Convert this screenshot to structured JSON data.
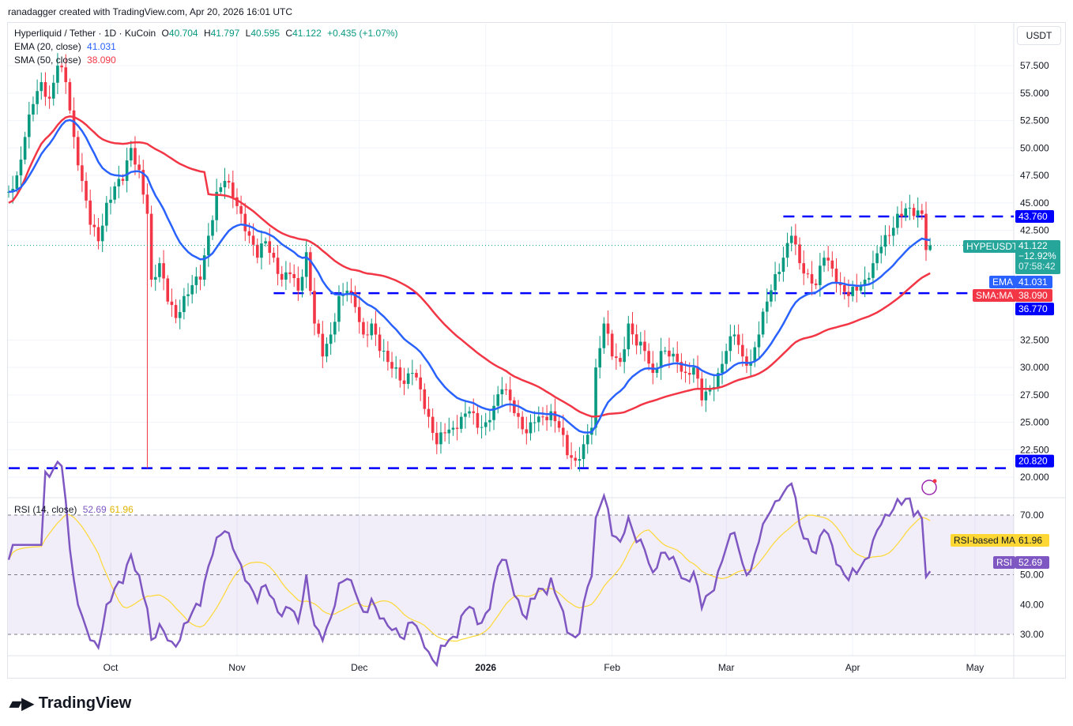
{
  "attribution": "ranadagger created with TradingView.com, Apr 20, 2026 16:01 UTC",
  "currency_button": "USDT",
  "logo_text": "TradingView",
  "legend": {
    "symbol": "Hyperliquid / Tether · 1D · KuCoin",
    "o_label": "O",
    "o": "40.704",
    "h_label": "H",
    "h": "41.797",
    "l_label": "L",
    "l": "40.595",
    "c_label": "C",
    "c": "41.122",
    "change": "+0.435 (+1.07%)",
    "ema_label": "EMA (20, close)",
    "ema_value": "41.031",
    "sma_label": "SMA (50, close)",
    "sma_value": "38.090",
    "rsi_label": "RSI (14, close)",
    "rsi_value": "52.69",
    "rsi_ma_value": "61.96"
  },
  "price_tags": {
    "symbol": "HYPEUSDT",
    "price": "41.122",
    "change_pct": "−12.92%",
    "countdown": "07:58:42",
    "ema_label": "EMA",
    "ema": "41.031",
    "sma_label": "SMA:MA",
    "sma": "38.090",
    "rsi_label": "RSI",
    "rsi": "52.69",
    "rsi_ma_label": "RSI-based MA",
    "rsi_ma": "61.96"
  },
  "colors": {
    "up": "#089981",
    "down": "#f23645",
    "ema": "#2962ff",
    "sma": "#f23645",
    "rsi": "#7e57c2",
    "rsi_ma": "#fdd835",
    "level": "#0000ff"
  },
  "chart_data": {
    "type": "candlestick",
    "title": "Hyperliquid / Tether · 1D · KuCoin",
    "price_ticks": [
      "57.500",
      "55.000",
      "52.500",
      "50.000",
      "47.500",
      "45.000",
      "42.500",
      "32.500",
      "30.000",
      "27.500",
      "25.000",
      "22.500",
      "20.000"
    ],
    "price_range": [
      20,
      58.5
    ],
    "time_ticks": [
      {
        "label": "Oct",
        "date": "2025-10-01"
      },
      {
        "label": "Nov",
        "date": "2025-11-01"
      },
      {
        "label": "Dec",
        "date": "2025-12-01"
      },
      {
        "label": "2026",
        "date": "2026-01-01"
      },
      {
        "label": "Feb",
        "date": "2026-02-01"
      },
      {
        "label": "Mar",
        "date": "2026-03-01"
      },
      {
        "label": "Apr",
        "date": "2026-04-01"
      },
      {
        "label": "May",
        "date": "2026-05-01"
      }
    ],
    "levels": [
      {
        "value": 43.76,
        "label": "43.760",
        "from": "2026-03-15"
      },
      {
        "value": 36.77,
        "label": "36.770",
        "from": "2025-11-10"
      },
      {
        "value": 20.82,
        "label": "20.820",
        "from": "2025-09-06"
      }
    ],
    "close_keypoints": [
      [
        "2025-09-06",
        46
      ],
      [
        "2025-09-08",
        47.5
      ],
      [
        "2025-09-10",
        51
      ],
      [
        "2025-09-12",
        54
      ],
      [
        "2025-09-14",
        56
      ],
      [
        "2025-09-16",
        54.5
      ],
      [
        "2025-09-18",
        57.5
      ],
      [
        "2025-09-20",
        56
      ],
      [
        "2025-09-22",
        51
      ],
      [
        "2025-09-24",
        47
      ],
      [
        "2025-09-26",
        43
      ],
      [
        "2025-09-28",
        41.5
      ],
      [
        "2025-09-30",
        45
      ],
      [
        "2025-10-02",
        46.5
      ],
      [
        "2025-10-04",
        47
      ],
      [
        "2025-10-06",
        50
      ],
      [
        "2025-10-08",
        48
      ],
      [
        "2025-10-10",
        44
      ],
      [
        "2025-10-11",
        38
      ],
      [
        "2025-10-13",
        39.5
      ],
      [
        "2025-10-15",
        36
      ],
      [
        "2025-10-17",
        34.5
      ],
      [
        "2025-10-19",
        36.5
      ],
      [
        "2025-10-21",
        37.5
      ],
      [
        "2025-10-23",
        38
      ],
      [
        "2025-10-25",
        42
      ],
      [
        "2025-10-27",
        46
      ],
      [
        "2025-10-29",
        47
      ],
      [
        "2025-10-31",
        45.5
      ],
      [
        "2025-11-02",
        44
      ],
      [
        "2025-11-04",
        42
      ],
      [
        "2025-11-06",
        40
      ],
      [
        "2025-11-08",
        41.5
      ],
      [
        "2025-11-10",
        40
      ],
      [
        "2025-11-12",
        38
      ],
      [
        "2025-11-14",
        38.5
      ],
      [
        "2025-11-16",
        37
      ],
      [
        "2025-11-18",
        40.5
      ],
      [
        "2025-11-20",
        34
      ],
      [
        "2025-11-22",
        31
      ],
      [
        "2025-11-24",
        33
      ],
      [
        "2025-11-26",
        36.5
      ],
      [
        "2025-11-28",
        37
      ],
      [
        "2025-11-30",
        35.5
      ],
      [
        "2025-12-02",
        33
      ],
      [
        "2025-12-04",
        34
      ],
      [
        "2025-12-06",
        31.5
      ],
      [
        "2025-12-08",
        30.5
      ],
      [
        "2025-12-10",
        30
      ],
      [
        "2025-12-12",
        28.5
      ],
      [
        "2025-12-14",
        29.5
      ],
      [
        "2025-12-16",
        28
      ],
      [
        "2025-12-18",
        25.5
      ],
      [
        "2025-12-20",
        23
      ],
      [
        "2025-12-22",
        24
      ],
      [
        "2025-12-24",
        24.5
      ],
      [
        "2025-12-26",
        25.5
      ],
      [
        "2025-12-28",
        26
      ],
      [
        "2025-12-30",
        24.5
      ],
      [
        "2026-01-01",
        25
      ],
      [
        "2026-01-03",
        26.5
      ],
      [
        "2026-01-05",
        28
      ],
      [
        "2026-01-07",
        27
      ],
      [
        "2026-01-09",
        25.5
      ],
      [
        "2026-01-11",
        24
      ],
      [
        "2026-01-13",
        25
      ],
      [
        "2026-01-15",
        25.5
      ],
      [
        "2026-01-17",
        26
      ],
      [
        "2026-01-19",
        24.5
      ],
      [
        "2026-01-21",
        22
      ],
      [
        "2026-01-23",
        21.5
      ],
      [
        "2026-01-25",
        23
      ],
      [
        "2026-01-27",
        24.5
      ],
      [
        "2026-01-28",
        30
      ],
      [
        "2026-01-30",
        34
      ],
      [
        "2026-02-01",
        31
      ],
      [
        "2026-02-03",
        30.5
      ],
      [
        "2026-02-05",
        34
      ],
      [
        "2026-02-07",
        32
      ],
      [
        "2026-02-09",
        31.5
      ],
      [
        "2026-02-11",
        29.5
      ],
      [
        "2026-02-13",
        31.5
      ],
      [
        "2026-02-15",
        31
      ],
      [
        "2026-02-17",
        30.5
      ],
      [
        "2026-02-19",
        29.5
      ],
      [
        "2026-02-21",
        30
      ],
      [
        "2026-02-23",
        27
      ],
      [
        "2026-02-25",
        28
      ],
      [
        "2026-02-27",
        29.5
      ],
      [
        "2026-03-01",
        31.5
      ],
      [
        "2026-03-03",
        33
      ],
      [
        "2026-03-05",
        31
      ],
      [
        "2026-03-07",
        30.5
      ],
      [
        "2026-03-09",
        33
      ],
      [
        "2026-03-11",
        36
      ],
      [
        "2026-03-13",
        38.5
      ],
      [
        "2026-03-15",
        40
      ],
      [
        "2026-03-17",
        42
      ],
      [
        "2026-03-19",
        39.5
      ],
      [
        "2026-03-21",
        38.5
      ],
      [
        "2026-03-23",
        37.5
      ],
      [
        "2026-03-25",
        40
      ],
      [
        "2026-03-27",
        39
      ],
      [
        "2026-03-29",
        37.5
      ],
      [
        "2026-03-31",
        36.5
      ],
      [
        "2026-04-02",
        37
      ],
      [
        "2026-04-04",
        38
      ],
      [
        "2026-04-06",
        39.5
      ],
      [
        "2026-04-08",
        41
      ],
      [
        "2026-04-10",
        42
      ],
      [
        "2026-04-12",
        44
      ],
      [
        "2026-04-14",
        44.5
      ],
      [
        "2026-04-16",
        43.8
      ],
      [
        "2026-04-18",
        44
      ],
      [
        "2026-04-19",
        40.7
      ],
      [
        "2026-04-20",
        41.122
      ]
    ],
    "rsi": {
      "ticks": [
        "70.00",
        "50.00",
        "40.00",
        "30.00"
      ],
      "range": [
        25,
        75
      ],
      "bands": [
        30,
        70
      ]
    }
  }
}
